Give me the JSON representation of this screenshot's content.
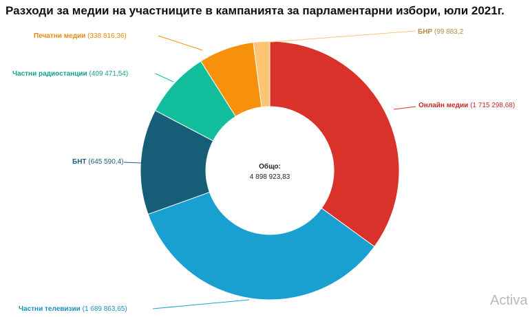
{
  "chart_data": {
    "type": "pie",
    "style": "donut",
    "title": "Разходи за медии на участниците в кампанията за парламентарни избори, юли 2021г.",
    "total_label": "Общо:",
    "total_value": "4 898 923,83",
    "slices": [
      {
        "name": "Онлайн медии",
        "value": 1715298.68,
        "value_text": "1 715 298,68",
        "color": "#d9322b"
      },
      {
        "name": "Частни телевизии",
        "value": 1689863.65,
        "value_text": "1 689 863,65",
        "color": "#1aa0d0"
      },
      {
        "name": "БНТ",
        "value": 645590.4,
        "value_text": "645 590,4",
        "color": "#165e78"
      },
      {
        "name": "Частни радиостанции",
        "value": 409471.54,
        "value_text": "409 471,54",
        "color": "#12bd9c"
      },
      {
        "name": "Печатни медии",
        "value": 338816.36,
        "value_text": "338 816,36",
        "color": "#f7910c"
      },
      {
        "name": "БНР",
        "value": 99883.2,
        "value_text": "99 883,2",
        "color": "#fcc573"
      }
    ]
  },
  "watermark": "Activa"
}
